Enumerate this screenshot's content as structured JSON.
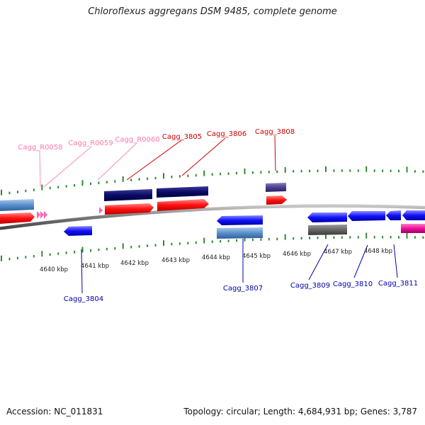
{
  "title": "Chloroflexus aggregans DSM 9485, complete genome",
  "accession": "Accession: NC_011831",
  "summary": "Topology: circular; Length: 4,684,931 bp; Genes: 3,787",
  "colors": {
    "backbone": "#808080",
    "tick": "#2e8b2e",
    "top_label": "#cc0000",
    "rna_label": "#ff77aa",
    "bottom_label": "#0000aa",
    "forward_gene": "#ff0000",
    "reverse_gene": "#0000ee",
    "forward_strip": "#000066",
    "reverse_strip": "#5b8fd0",
    "rna": "#ff66b3",
    "gray_strip": "#666666",
    "purple_strip": "#4a3f8c",
    "magenta": "#ee1199"
  },
  "scale_labels": [
    "4640 kbp",
    "4641 kbp",
    "4642 kbp",
    "4643 kbp",
    "4644 kbp",
    "4645 kbp",
    "4646 kbp",
    "4647 kbp",
    "4648 kbp"
  ],
  "top_labels": [
    {
      "text": "Cagg_R0058",
      "type": "rna"
    },
    {
      "text": "Cagg_R0059",
      "type": "rna"
    },
    {
      "text": "Cagg_R0060",
      "type": "rna"
    },
    {
      "text": "Cagg_3805",
      "type": "gene"
    },
    {
      "text": "Cagg_3806",
      "type": "gene"
    },
    {
      "text": "Cagg_3808",
      "type": "gene"
    }
  ],
  "bottom_labels": [
    {
      "text": "Cagg_3804"
    },
    {
      "text": "Cagg_3807"
    },
    {
      "text": "Cagg_3809"
    },
    {
      "text": "Cagg_3810"
    },
    {
      "text": "Cagg_3811"
    }
  ]
}
